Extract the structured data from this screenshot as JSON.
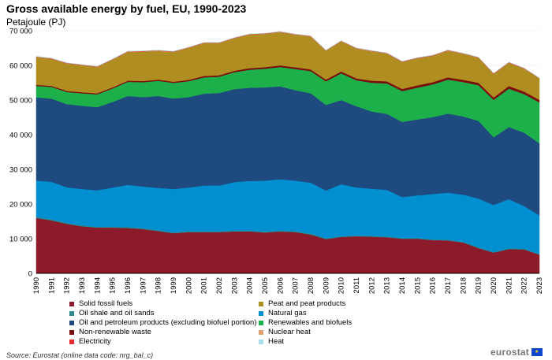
{
  "chart_data": {
    "type": "area",
    "stacked": true,
    "title": "Gross available energy by fuel, EU, 1990-2023",
    "subtitle": "Petajoule (PJ)",
    "ylim": [
      0,
      70000
    ],
    "yticks": [
      "0",
      "10 000",
      "20 000",
      "30 000",
      "40 000",
      "50 000",
      "60 000",
      "70 000"
    ],
    "ytick_values": [
      0,
      10000,
      20000,
      30000,
      40000,
      50000,
      60000,
      70000
    ],
    "x": [
      "1990",
      "1991",
      "1992",
      "1993",
      "1994",
      "1995",
      "1996",
      "1997",
      "1998",
      "1999",
      "2000",
      "2001",
      "2002",
      "2003",
      "2004",
      "2005",
      "2006",
      "2007",
      "2008",
      "2009",
      "2010",
      "2011",
      "2012",
      "2013",
      "2014",
      "2015",
      "2016",
      "2017",
      "2018",
      "2019",
      "2020",
      "2021",
      "2022",
      "2023"
    ],
    "series": [
      {
        "name": "Solid fossil fuels",
        "color": "#8c1a2b",
        "values": [
          16000,
          15300,
          14300,
          13600,
          13200,
          13200,
          13100,
          12800,
          12200,
          11600,
          11900,
          11900,
          11900,
          12100,
          12100,
          11800,
          12100,
          11900,
          11200,
          9900,
          10500,
          10700,
          10600,
          10400,
          10000,
          10000,
          9600,
          9500,
          8900,
          7300,
          6000,
          7000,
          6900,
          5400
        ]
      },
      {
        "name": "Oil shale and oil sands",
        "color": "#2a8c8c",
        "values": [
          300,
          300,
          250,
          250,
          250,
          250,
          250,
          250,
          250,
          250,
          250,
          250,
          250,
          250,
          250,
          250,
          250,
          250,
          250,
          200,
          200,
          200,
          200,
          200,
          200,
          200,
          200,
          200,
          200,
          200,
          150,
          200,
          200,
          150
        ]
      },
      {
        "name": "Natural gas",
        "color": "#008fd0",
        "values": [
          10500,
          10800,
          10300,
          10500,
          10500,
          11300,
          12200,
          12000,
          12200,
          12500,
          12600,
          13200,
          13200,
          14000,
          14300,
          14700,
          14800,
          14600,
          14700,
          13800,
          15000,
          13900,
          13600,
          13500,
          11800,
          12300,
          13100,
          13600,
          13600,
          14100,
          13600,
          14200,
          12300,
          11200
        ]
      },
      {
        "name": "Oil and petroleum products (excluding biofuel portion)",
        "color": "#1f4a80",
        "values": [
          24000,
          24000,
          24000,
          24000,
          24000,
          24700,
          25600,
          25800,
          26500,
          26100,
          26100,
          26500,
          26700,
          26800,
          26900,
          26900,
          26800,
          26100,
          25800,
          24700,
          24300,
          23400,
          22300,
          21900,
          21700,
          21900,
          22200,
          22800,
          22600,
          22400,
          19500,
          20800,
          21200,
          20800
        ]
      },
      {
        "name": "Renewables and biofuels",
        "color": "#1db04a",
        "values": [
          3300,
          3400,
          3500,
          3600,
          3700,
          3900,
          4100,
          4300,
          4400,
          4500,
          4600,
          4700,
          4700,
          4900,
          5200,
          5400,
          5600,
          6100,
          6400,
          6800,
          7700,
          7500,
          8300,
          8800,
          8900,
          9200,
          9400,
          9800,
          9900,
          10300,
          10800,
          11100,
          11100,
          11800
        ]
      },
      {
        "name": "Non-renewable waste",
        "color": "#7a0e0e",
        "values": [
          300,
          300,
          300,
          300,
          300,
          300,
          350,
          350,
          350,
          350,
          400,
          400,
          400,
          400,
          450,
          450,
          450,
          500,
          500,
          500,
          550,
          550,
          600,
          600,
          600,
          650,
          650,
          650,
          650,
          700,
          700,
          750,
          750,
          700
        ]
      },
      {
        "name": "Peat and peat products",
        "color": "#b08d20",
        "values": [
          8000,
          7800,
          7900,
          7800,
          7600,
          8000,
          8300,
          8500,
          8300,
          8600,
          9200,
          9500,
          9300,
          9400,
          9700,
          9600,
          9600,
          9400,
          9500,
          8300,
          8700,
          8600,
          8500,
          8000,
          7800,
          7800,
          7600,
          7700,
          7500,
          7200,
          6800,
          6700,
          6600,
          6200
        ]
      },
      {
        "name": "Nuclear heat",
        "color": "#e0a070",
        "values": [
          50,
          50,
          50,
          50,
          50,
          50,
          50,
          50,
          50,
          50,
          50,
          50,
          50,
          50,
          50,
          50,
          50,
          50,
          50,
          50,
          50,
          50,
          50,
          50,
          50,
          50,
          50,
          50,
          50,
          50,
          50,
          50,
          50,
          50
        ]
      },
      {
        "name": "Electricity",
        "color": "#e8282b",
        "values": [
          100,
          100,
          100,
          100,
          100,
          100,
          100,
          100,
          100,
          100,
          100,
          100,
          100,
          100,
          100,
          100,
          100,
          100,
          100,
          100,
          100,
          100,
          100,
          100,
          100,
          100,
          100,
          100,
          100,
          100,
          100,
          100,
          100,
          50
        ]
      },
      {
        "name": "Heat",
        "color": "#a8dcea",
        "values": [
          30,
          30,
          30,
          30,
          30,
          30,
          30,
          30,
          30,
          30,
          30,
          30,
          30,
          30,
          30,
          30,
          30,
          30,
          30,
          30,
          30,
          30,
          30,
          30,
          30,
          30,
          30,
          30,
          30,
          30,
          30,
          30,
          30,
          30
        ]
      }
    ]
  },
  "legend": [
    {
      "label": "Solid fossil fuels",
      "color": "#8c1a2b"
    },
    {
      "label": "Peat and peat products",
      "color": "#b08d20"
    },
    {
      "label": "Oil shale and oil sands",
      "color": "#2a8c8c"
    },
    {
      "label": "Natural gas",
      "color": "#008fd0"
    },
    {
      "label": "Oil and petroleum products (excluding biofuel portion)",
      "color": "#1f4a80"
    },
    {
      "label": "Renewables and biofuels",
      "color": "#1db04a"
    },
    {
      "label": "Non-renewable waste",
      "color": "#7a0e0e"
    },
    {
      "label": "Nuclear heat",
      "color": "#e0a070"
    },
    {
      "label": "Electricity",
      "color": "#e8282b"
    },
    {
      "label": "Heat",
      "color": "#a8dcea"
    }
  ],
  "source": "Source: Eurostat (online data code: nrg_bal_c)",
  "logo_text": "eurostat"
}
